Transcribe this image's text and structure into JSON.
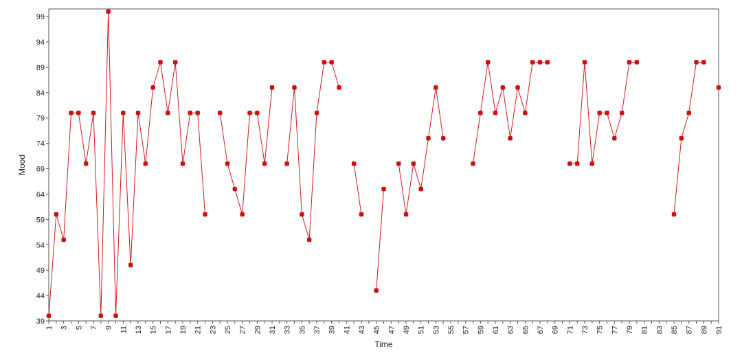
{
  "chart_data": {
    "type": "line",
    "title": "",
    "xlabel": "Time",
    "ylabel": "Mood",
    "xlim": [
      1,
      91
    ],
    "ylim": [
      39,
      100.5
    ],
    "x_ticks": [
      1,
      3,
      5,
      7,
      9,
      11,
      13,
      15,
      17,
      19,
      21,
      23,
      25,
      27,
      29,
      31,
      33,
      35,
      37,
      39,
      41,
      43,
      45,
      47,
      49,
      51,
      53,
      55,
      57,
      59,
      61,
      63,
      65,
      67,
      69,
      71,
      73,
      75,
      77,
      79,
      81,
      83,
      85,
      87,
      89,
      91
    ],
    "x_tick_labels": [
      "1",
      "3",
      "5",
      "7",
      "9",
      "11",
      "13",
      "15",
      "17",
      "19",
      "21",
      "23",
      "25",
      "27",
      "29",
      "31",
      "33",
      "35",
      "37",
      "39",
      "41",
      "43",
      "45",
      "47",
      "49",
      "51",
      "53",
      "55",
      "57",
      "59",
      "61",
      "63",
      "65",
      "67",
      "69",
      "71",
      "73",
      "75",
      "77",
      "79",
      "81",
      "83",
      "85",
      "87",
      "89",
      "91"
    ],
    "y_ticks": [
      39,
      44,
      49,
      54,
      59,
      64,
      69,
      74,
      79,
      84,
      89,
      94,
      99
    ],
    "y_tick_labels": [
      "39",
      "44",
      "49",
      "54",
      "59",
      "64",
      "69",
      "74",
      "79",
      "84",
      "89",
      "94",
      "99"
    ],
    "grid": false,
    "legend": "none",
    "color": "#cc1111",
    "series": [
      {
        "x": [
          1,
          2,
          3,
          4,
          5,
          6,
          7,
          8,
          9,
          10,
          11,
          12,
          13,
          14,
          15,
          16,
          17,
          18,
          19,
          20,
          21,
          22,
          23,
          24,
          25,
          26,
          27,
          28,
          29,
          30,
          31,
          32,
          33,
          34,
          35,
          36,
          37,
          38,
          39,
          40,
          41,
          42,
          43,
          44,
          45,
          46,
          47,
          48,
          49,
          50,
          51,
          52,
          53,
          54,
          55,
          56,
          57,
          58,
          59,
          60,
          61,
          62,
          63,
          64,
          65,
          66,
          67,
          68,
          69,
          70,
          71,
          72,
          73,
          74,
          75,
          76,
          77,
          78,
          79,
          80,
          81,
          82,
          83,
          84,
          85,
          86,
          87,
          88,
          89,
          90,
          91
        ],
        "values": [
          40,
          60,
          55,
          80,
          80,
          70,
          80,
          40,
          100,
          40,
          80,
          50,
          80,
          70,
          85,
          90,
          80,
          90,
          70,
          80,
          80,
          60,
          null,
          80,
          70,
          65,
          60,
          80,
          80,
          70,
          85,
          null,
          70,
          85,
          60,
          55,
          80,
          90,
          90,
          85,
          null,
          70,
          60,
          null,
          45,
          65,
          null,
          70,
          60,
          70,
          65,
          75,
          85,
          75,
          null,
          null,
          null,
          70,
          80,
          90,
          80,
          85,
          75,
          85,
          80,
          90,
          90,
          90,
          null,
          null,
          70,
          70,
          90,
          70,
          80,
          80,
          75,
          80,
          90,
          90,
          null,
          null,
          null,
          null,
          60,
          75,
          80,
          90,
          90,
          null,
          85
        ]
      }
    ]
  }
}
